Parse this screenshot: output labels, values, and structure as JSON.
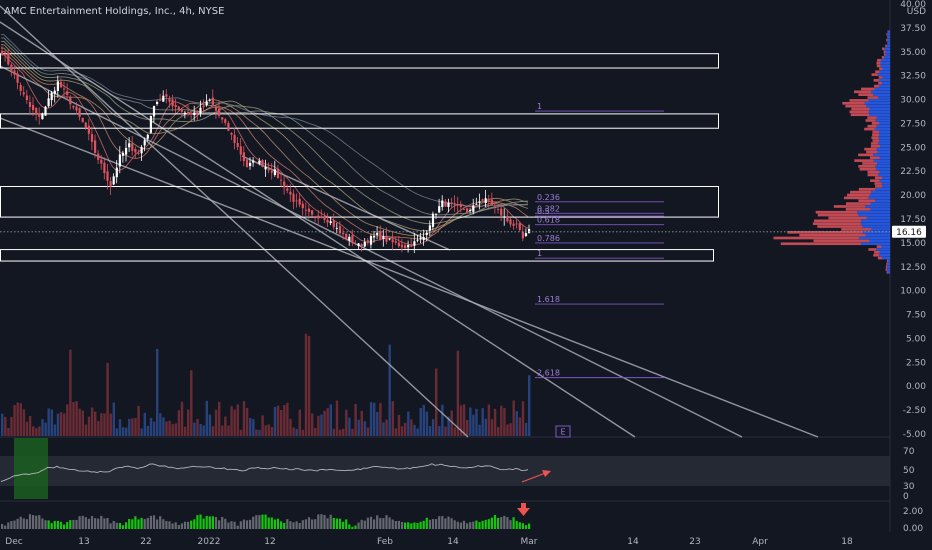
{
  "header": {
    "title": "AMC Entertainment Holdings, Inc., 4h, NYSE"
  },
  "colors": {
    "background": "#131722",
    "up": "#ffffff",
    "down": "#e0535d",
    "vol_up": "#2c4a8c",
    "vol_down": "#7a2f38",
    "channel": "#b2b5be",
    "zone": "#ffffff",
    "fib": "#7e57c2",
    "vp_blue": "#2962ff",
    "vp_red": "#e0535d",
    "rsi_line": "#b2b5be",
    "rsi_band": "#3b3f4a",
    "osc_green": "#26a69a",
    "osc_bright": "#16c60c",
    "arrow_red": "#ef5350",
    "current_price_line": "#9598a1"
  },
  "price_axis": {
    "unit_label": "USD",
    "ticks": [
      "40.00",
      "37.50",
      "35.00",
      "32.50",
      "30.00",
      "27.50",
      "25.00",
      "22.50",
      "20.00",
      "17.50",
      "15.00",
      "12.50",
      "10.00",
      "7.50",
      "5.00",
      "2.50",
      "0.00",
      "-2.50",
      "-5.00"
    ],
    "current_price": "16.16"
  },
  "rsi_axis": {
    "ticks": [
      "70",
      "50",
      "30",
      "0"
    ]
  },
  "osc_axis": {
    "ticks": [
      "2.00",
      "0.00"
    ]
  },
  "time_axis": {
    "labels": [
      "Dec",
      "13",
      "22",
      "2022",
      "12",
      "Feb",
      "14",
      "Mar",
      "14",
      "23",
      "Apr",
      "18"
    ]
  },
  "fib_levels": [
    {
      "label": "1",
      "value": 28.8
    },
    {
      "label": "0.236",
      "value": 19.3
    },
    {
      "label": "0.382",
      "value": 18.1
    },
    {
      "label": "0.5",
      "value": 17.8
    },
    {
      "label": "0.618",
      "value": 16.9
    },
    {
      "label": "0.786",
      "value": 15.0
    },
    {
      "label": "1",
      "value": 13.4
    },
    {
      "label": "1.618",
      "value": 8.6
    },
    {
      "label": "2.618",
      "value": 0.9
    }
  ],
  "events_badge": "E",
  "chart_data": {
    "type": "candlestick",
    "title": "AMC Entertainment Holdings, Inc., 4h, NYSE",
    "ylabel": "USD",
    "ylim": [
      -5,
      40
    ],
    "zones": [
      {
        "top": 34.8,
        "bottom": 33.3
      },
      {
        "top": 28.5,
        "bottom": 27.0
      },
      {
        "top": 20.9,
        "bottom": 17.7
      },
      {
        "top": 14.3,
        "bottom": 13.1
      }
    ],
    "close_path": [
      [
        0,
        35.0
      ],
      [
        3,
        33.2
      ],
      [
        6,
        31.0
      ],
      [
        9,
        29.2
      ],
      [
        12,
        28.0
      ],
      [
        15,
        30.0
      ],
      [
        18,
        31.8
      ],
      [
        21,
        30.3
      ],
      [
        24,
        28.6
      ],
      [
        27,
        27.0
      ],
      [
        30,
        24.5
      ],
      [
        33,
        22.4
      ],
      [
        35,
        21.0
      ],
      [
        38,
        24.0
      ],
      [
        41,
        25.2
      ],
      [
        44,
        24.3
      ],
      [
        47,
        26.5
      ],
      [
        49,
        29.6
      ],
      [
        52,
        30.3
      ],
      [
        55,
        29.5
      ],
      [
        58,
        28.8
      ],
      [
        61,
        28.4
      ],
      [
        64,
        28.9
      ],
      [
        67,
        29.9
      ],
      [
        70,
        28.3
      ],
      [
        73,
        26.8
      ],
      [
        76,
        25.0
      ],
      [
        79,
        23.0
      ],
      [
        82,
        23.6
      ],
      [
        85,
        23.0
      ],
      [
        88,
        22.4
      ],
      [
        91,
        21.0
      ],
      [
        94,
        19.5
      ],
      [
        97,
        18.4
      ],
      [
        100,
        17.8
      ],
      [
        103,
        17.9
      ],
      [
        106,
        17.2
      ],
      [
        109,
        16.0
      ],
      [
        112,
        15.4
      ],
      [
        115,
        14.7
      ],
      [
        118,
        15.3
      ],
      [
        121,
        15.8
      ],
      [
        124,
        15.3
      ],
      [
        127,
        14.9
      ],
      [
        130,
        14.6
      ],
      [
        133,
        15.0
      ],
      [
        136,
        15.6
      ],
      [
        139,
        17.8
      ],
      [
        142,
        19.2
      ],
      [
        145,
        18.9
      ],
      [
        148,
        18.6
      ],
      [
        151,
        18.3
      ],
      [
        154,
        19.5
      ],
      [
        157,
        19.4
      ],
      [
        160,
        18.3
      ],
      [
        163,
        17.3
      ],
      [
        166,
        16.7
      ],
      [
        168,
        15.4
      ],
      [
        170,
        16.2
      ]
    ],
    "volume_profile": [
      {
        "price": 36.5,
        "up": 4,
        "down": 1
      },
      {
        "price": 35.0,
        "up": 8,
        "down": 3
      },
      {
        "price": 33.5,
        "up": 14,
        "down": 6
      },
      {
        "price": 32.0,
        "up": 18,
        "down": 9
      },
      {
        "price": 30.5,
        "up": 28,
        "down": 25
      },
      {
        "price": 29.0,
        "up": 34,
        "down": 30
      },
      {
        "price": 27.5,
        "up": 20,
        "down": 14
      },
      {
        "price": 26.0,
        "up": 16,
        "down": 10
      },
      {
        "price": 24.5,
        "up": 22,
        "down": 20
      },
      {
        "price": 23.0,
        "up": 24,
        "down": 28
      },
      {
        "price": 21.5,
        "up": 18,
        "down": 16
      },
      {
        "price": 20.0,
        "up": 30,
        "down": 34
      },
      {
        "price": 18.5,
        "up": 44,
        "down": 56
      },
      {
        "price": 17.0,
        "up": 38,
        "down": 62
      },
      {
        "price": 15.5,
        "up": 40,
        "down": 110
      },
      {
        "price": 14.0,
        "up": 18,
        "down": 10
      },
      {
        "price": 12.5,
        "up": 4,
        "down": 2
      }
    ],
    "rsi_band": [
      30,
      70
    ]
  }
}
